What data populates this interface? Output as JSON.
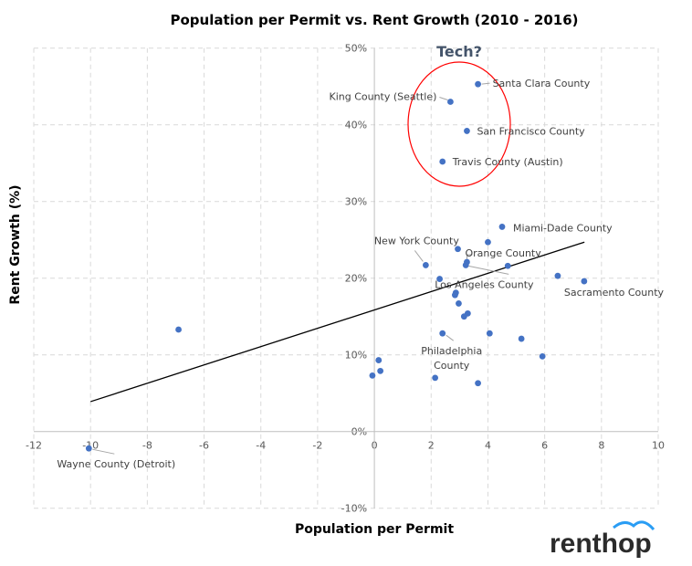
{
  "chart_data": {
    "type": "scatter",
    "title": "Population per Permit vs. Rent Growth (2010 - 2016)",
    "xlabel": "Population per Permit",
    "ylabel": "Rent Growth (%)",
    "xlim": [
      -12,
      10
    ],
    "ylim": [
      -10,
      50
    ],
    "x_ticks": [
      "-12",
      "-10",
      "-8",
      "-6",
      "-4",
      "-2",
      "0",
      "2",
      "4",
      "6",
      "8",
      "10"
    ],
    "y_ticks": [
      "-10%",
      "0%",
      "10%",
      "20%",
      "30%",
      "40%",
      "50%"
    ],
    "grid": true,
    "marker_color": "#4472C4",
    "points": [
      {
        "x": 3.65,
        "y": 45.3,
        "label": "Santa Clara County"
      },
      {
        "x": 2.68,
        "y": 43.0,
        "label": "King County (Seattle)"
      },
      {
        "x": 3.26,
        "y": 39.2,
        "label": "San Francisco County"
      },
      {
        "x": 2.4,
        "y": 35.2,
        "label": "Travis County (Austin)"
      },
      {
        "x": 4.5,
        "y": 26.7,
        "label": "Miami-Dade County"
      },
      {
        "x": 4.0,
        "y": 24.7
      },
      {
        "x": 2.94,
        "y": 23.8
      },
      {
        "x": 3.26,
        "y": 22.1,
        "label": "Orange County"
      },
      {
        "x": 3.22,
        "y": 21.7,
        "label": "Los Angeles County"
      },
      {
        "x": 4.7,
        "y": 21.6
      },
      {
        "x": 1.81,
        "y": 21.7,
        "label": "New York County"
      },
      {
        "x": 2.3,
        "y": 19.9
      },
      {
        "x": 6.46,
        "y": 20.3
      },
      {
        "x": 7.39,
        "y": 19.6,
        "label": "Sacramento County"
      },
      {
        "x": 2.87,
        "y": 18.1
      },
      {
        "x": 2.84,
        "y": 17.8
      },
      {
        "x": 2.97,
        "y": 16.7
      },
      {
        "x": 3.16,
        "y": 15.0
      },
      {
        "x": 3.29,
        "y": 15.4
      },
      {
        "x": 2.4,
        "y": 12.8,
        "label": "Philadelphia County"
      },
      {
        "x": 4.06,
        "y": 12.8
      },
      {
        "x": 5.18,
        "y": 12.1
      },
      {
        "x": 5.92,
        "y": 9.8
      },
      {
        "x": 0.15,
        "y": 9.3
      },
      {
        "x": 0.21,
        "y": 7.9
      },
      {
        "x": -0.07,
        "y": 7.3
      },
      {
        "x": 2.14,
        "y": 7.0
      },
      {
        "x": 3.65,
        "y": 6.3
      },
      {
        "x": -6.9,
        "y": 13.3
      },
      {
        "x": -10.06,
        "y": -2.2,
        "label": "Wayne County (Detroit)"
      }
    ],
    "trendline": {
      "x": [
        -10,
        7.4
      ],
      "y": [
        3.9,
        24.7
      ],
      "color": "#000000"
    },
    "annotation": {
      "text": "Tech?",
      "shape": "ellipse",
      "color": "#FF0000"
    }
  },
  "logo": {
    "text": "renthop",
    "colors": {
      "text": "#2b2b2b",
      "arc": "#2a9df4"
    }
  }
}
